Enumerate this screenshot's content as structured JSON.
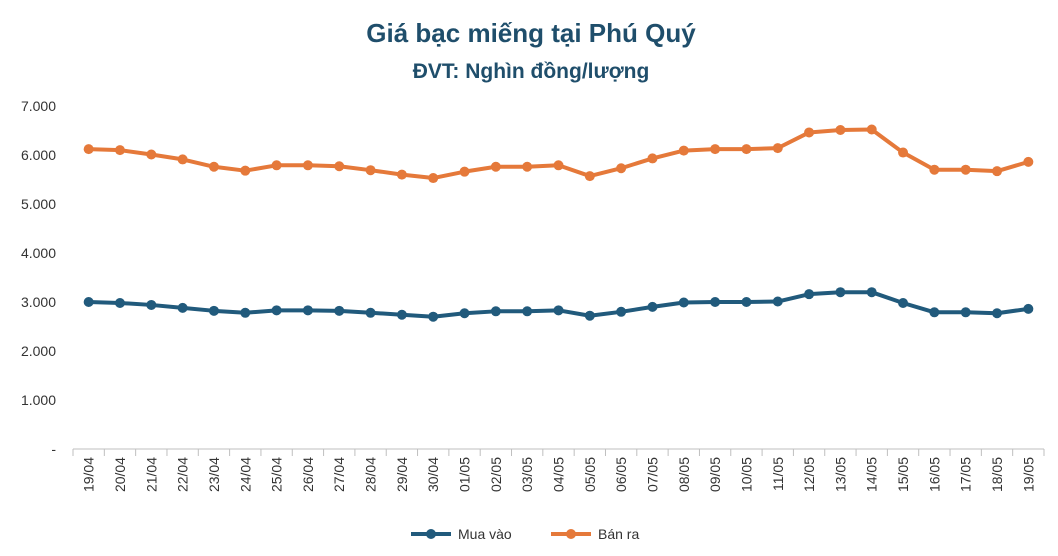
{
  "chart_data": {
    "type": "line",
    "title": "Giá bạc miếng tại Phú Quý",
    "subtitle": "ĐVT: Nghìn đồng/lượng",
    "categories": [
      "19/04",
      "20/04",
      "21/04",
      "22/04",
      "23/04",
      "24/04",
      "25/04",
      "26/04",
      "27/04",
      "28/04",
      "29/04",
      "30/04",
      "01/05",
      "02/05",
      "03/05",
      "04/05",
      "05/05",
      "06/05",
      "07/05",
      "08/05",
      "09/05",
      "10/05",
      "11/05",
      "12/05",
      "13/05",
      "14/05",
      "15/05",
      "16/05",
      "17/05",
      "18/05",
      "19/05"
    ],
    "series": [
      {
        "name": "Mua vào",
        "color": "#215a7c",
        "values": [
          3000,
          2980,
          2940,
          2880,
          2820,
          2780,
          2830,
          2830,
          2820,
          2780,
          2740,
          2700,
          2770,
          2810,
          2810,
          2830,
          2720,
          2800,
          2900,
          2990,
          3000,
          3000,
          3010,
          3160,
          3200,
          3200,
          2980,
          2790,
          2790,
          2770,
          2860
        ]
      },
      {
        "name": "Bán ra",
        "color": "#e5793a",
        "values": [
          6120,
          6100,
          6010,
          5910,
          5760,
          5680,
          5790,
          5790,
          5770,
          5690,
          5600,
          5530,
          5660,
          5760,
          5760,
          5790,
          5570,
          5730,
          5930,
          6090,
          6120,
          6120,
          6140,
          6460,
          6510,
          6520,
          6050,
          5700,
          5700,
          5670,
          5860
        ]
      }
    ],
    "yticks": [
      "-",
      "1.000",
      "2.000",
      "3.000",
      "4.000",
      "5.000",
      "6.000",
      "7.000"
    ],
    "ylim": [
      0,
      7000
    ],
    "grid": false,
    "legend": "bottom-center"
  }
}
